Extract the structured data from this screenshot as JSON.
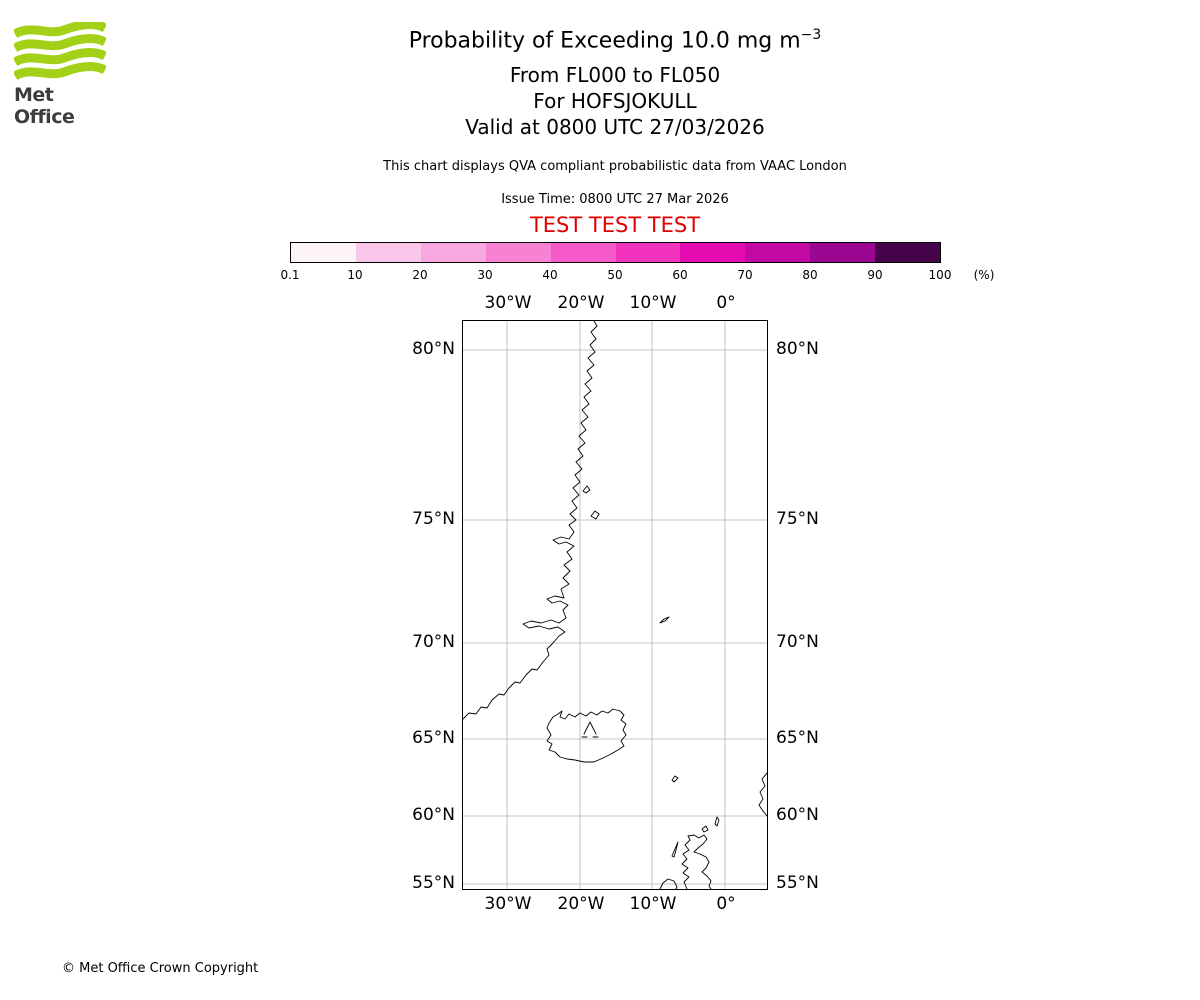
{
  "logo": {
    "text": "Met Office",
    "green": "#a3d117",
    "text_color": "#3d3d3f"
  },
  "header": {
    "title": "Probability of Exceeding 10.0 mg m",
    "title_sup": "−3",
    "subtitle1": "From FL000 to FL050",
    "subtitle2": "For HOFSJOKULL",
    "subtitle3": "Valid at 0800 UTC 27/03/2026",
    "note": "This chart displays QVA compliant probabilistic data from VAAC London",
    "issue_time": "Issue Time: 0800 UTC 27 Mar 2026",
    "test_text": "TEST TEST TEST",
    "test_color": "#e00000"
  },
  "colorbar": {
    "ticks": [
      "0.1",
      "10",
      "20",
      "30",
      "40",
      "50",
      "60",
      "70",
      "80",
      "90",
      "100"
    ],
    "unit_label": "(%)",
    "colors": [
      "#fdf4fa",
      "#fac6e9",
      "#f8a7df",
      "#f781d3",
      "#f65ac8",
      "#f233bd",
      "#e50cb2",
      "#c309a3",
      "#9b0690",
      "#470349"
    ]
  },
  "map": {
    "lon_labels": [
      "30°W",
      "20°W",
      "10°W",
      "0°"
    ],
    "lat_labels": [
      "80°N",
      "75°N",
      "70°N",
      "65°N",
      "60°N",
      "55°N"
    ]
  },
  "footer": {
    "copyright": "© Met Office Crown Copyright"
  }
}
